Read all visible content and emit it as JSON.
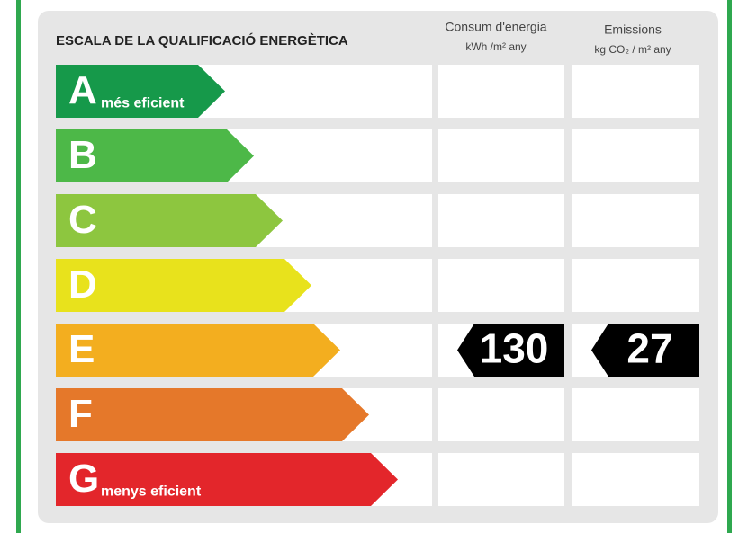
{
  "header": {
    "title": "ESCALA DE LA QUALIFICACIÓ ENERGÈTICA",
    "consumption": {
      "title": "Consum d'energia",
      "unit": "kWh /m² any"
    },
    "emissions": {
      "title": "Emissions",
      "unit": "kg CO₂ / m² any"
    }
  },
  "ratings": [
    {
      "letter": "A",
      "label": "més eficient",
      "color": "#16994a"
    },
    {
      "letter": "B",
      "color": "#4db848"
    },
    {
      "letter": "C",
      "color": "#8dc63f"
    },
    {
      "letter": "D",
      "color": "#e8e21c"
    },
    {
      "letter": "E",
      "color": "#f3ae1f",
      "consumption": 130,
      "emissions": 27
    },
    {
      "letter": "F",
      "color": "#e5782a"
    },
    {
      "letter": "G",
      "label": "menys eficient",
      "color": "#e3262b"
    }
  ]
}
